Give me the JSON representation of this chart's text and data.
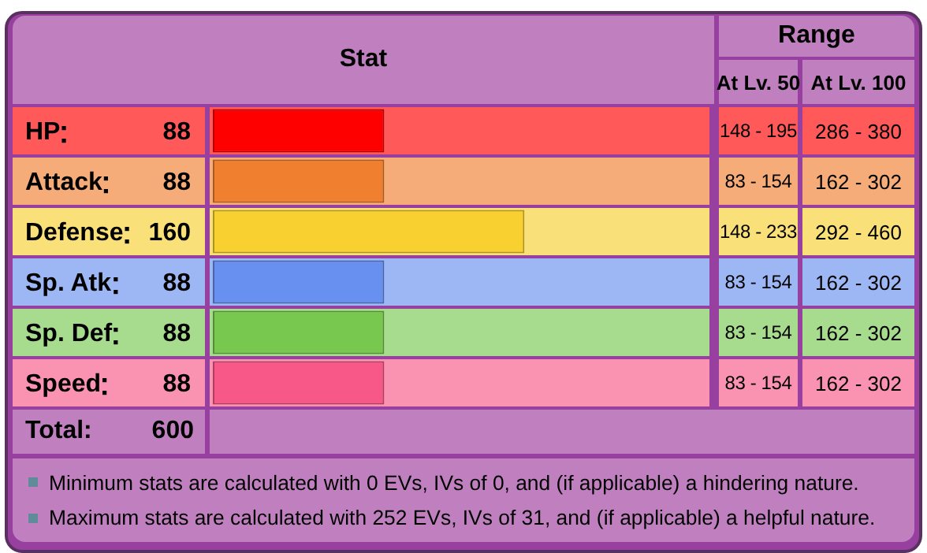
{
  "chart_data": {
    "type": "bar",
    "orientation": "horizontal",
    "title": "Stat",
    "categories": [
      "HP",
      "Attack",
      "Defense",
      "Sp. Atk",
      "Sp. Def",
      "Speed"
    ],
    "values": [
      88,
      88,
      160,
      88,
      88,
      88
    ],
    "colors": [
      "#ff0000",
      "#f08030",
      "#f8d030",
      "#6890f0",
      "#78c850",
      "#f85888"
    ],
    "xlim": [
      0,
      255
    ],
    "data_labels": true,
    "tick_labels": "y",
    "legend": false,
    "annotations": [
      "Range",
      "At Lv. 50",
      "At Lv. 100",
      "148 - 195",
      "286 - 380",
      "83 - 154",
      "162 - 302",
      "148 - 233",
      "292 - 460",
      "83 - 154",
      "162 - 302",
      "83 - 154",
      "162 - 302",
      "83 - 154",
      "162 - 302",
      "Total:",
      "600",
      "Minimum stats are calculated with 0 EVs, IVs of 0, and (if applicable) a hindering nature.",
      "Maximum stats are calculated with 252 EVs, IVs of 31, and (if applicable) a helpful nature."
    ]
  }
}
